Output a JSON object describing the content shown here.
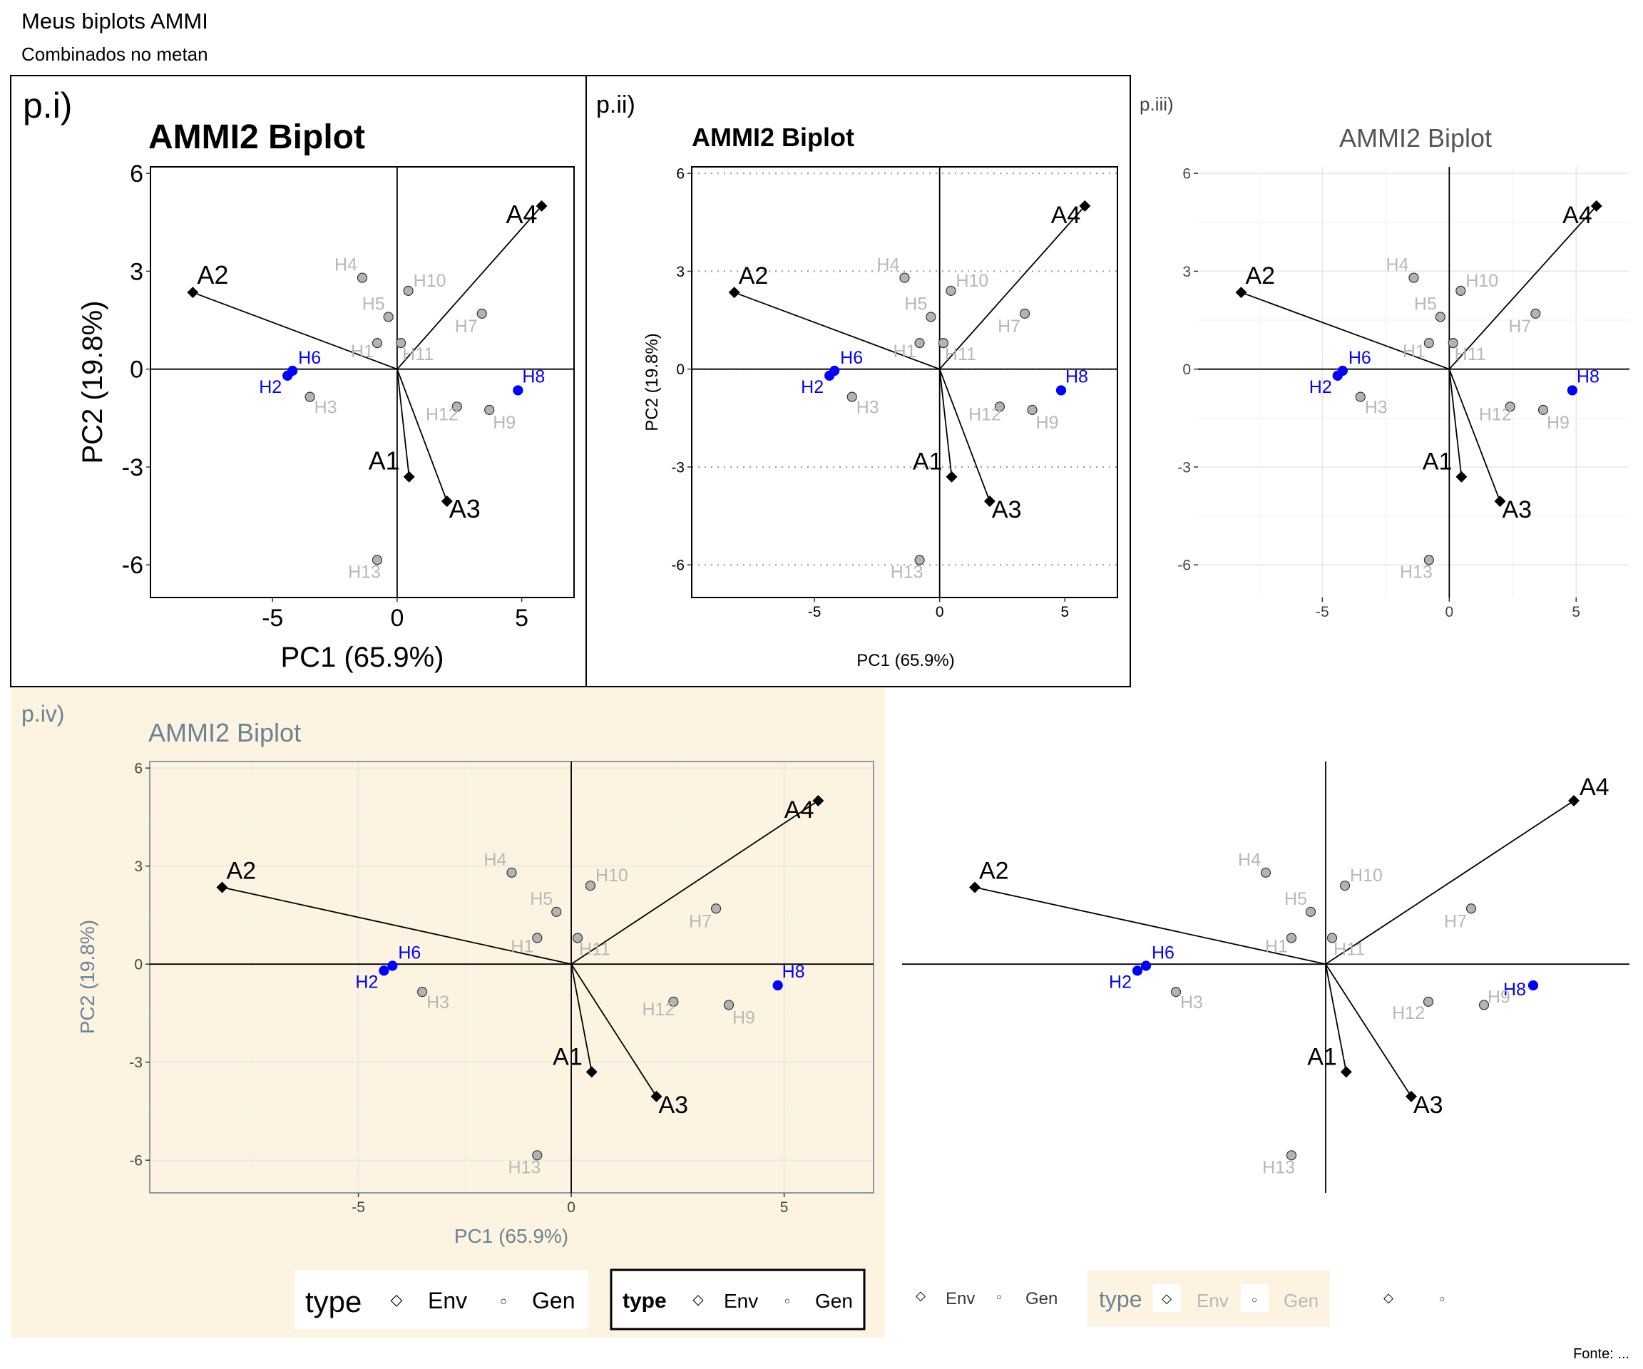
{
  "page": {
    "title": "Meus biplots AMMI",
    "subtitle": "Combinados no metan",
    "caption": "Fonte: ..."
  },
  "colors": {
    "env": "#000000",
    "gen_fill": "#b3b3b3",
    "gen_label": "#b8b8b8",
    "highlight": "#0000ff",
    "panel4_bg": "#fcf4e1",
    "panel4_text": "#6b8396",
    "grid_light": "#e6e6e6"
  },
  "chart_data": [
    {
      "id": "p.i)",
      "tag": "p.i)",
      "type": "scatter",
      "title": "AMMI2 Biplot",
      "xlabel": "PC1 (65.9%)",
      "ylabel": "PC2 (19.8%)",
      "xticks": [
        -5,
        0,
        5
      ],
      "yticks": [
        -6,
        -3,
        0,
        3,
        6
      ],
      "grid": "none",
      "legend": {
        "title": "type",
        "items": [
          "Env",
          "Gen"
        ]
      }
    },
    {
      "id": "p.ii)",
      "tag": "p.ii)",
      "type": "scatter",
      "title": "AMMI2 Biplot",
      "xlabel": "PC1 (65.9%)",
      "ylabel": "PC2 (19.8%)",
      "xticks": [
        -5,
        0,
        5
      ],
      "yticks": [
        -6,
        -3,
        0,
        3,
        6
      ],
      "grid": "dotted horizontal",
      "legend": {
        "title": "type",
        "items": [
          "Env",
          "Gen"
        ]
      }
    },
    {
      "id": "p.iii)",
      "tag": "p.iii)",
      "type": "scatter",
      "title": "AMMI2 Biplot",
      "xticks": [
        -5,
        0,
        5
      ],
      "yticks": [
        -6,
        -3,
        0,
        3,
        6
      ],
      "grid": "light",
      "legend": {
        "title": "",
        "items": [
          "Env",
          "Gen"
        ]
      }
    },
    {
      "id": "p.iv)",
      "tag": "p.iv)",
      "type": "scatter",
      "title": "AMMI2 Biplot",
      "xlabel": "PC1 (65.9%)",
      "ylabel": "PC2 (19.8%)",
      "xticks": [
        -5,
        0,
        5
      ],
      "yticks": [
        -6,
        -3,
        0,
        3,
        6
      ],
      "grid": "light",
      "legend": {
        "title": "type",
        "items": [
          "Env",
          "Gen"
        ]
      }
    },
    {
      "id": "p.v",
      "tag": "",
      "type": "scatter",
      "title": "",
      "grid": "none",
      "legend": {
        "title": "",
        "items": [
          "",
          ""
        ]
      }
    }
  ],
  "points": {
    "env": [
      {
        "label": "A1",
        "x": 0.48,
        "y": -3.3
      },
      {
        "label": "A2",
        "x": -8.2,
        "y": 2.35
      },
      {
        "label": "A3",
        "x": 2.0,
        "y": -4.05
      },
      {
        "label": "A4",
        "x": 5.8,
        "y": 5.0
      }
    ],
    "gen": [
      {
        "label": "H1",
        "x": -0.8,
        "y": 0.8
      },
      {
        "label": "H2",
        "x": -4.4,
        "y": -0.2
      },
      {
        "label": "H3",
        "x": -3.5,
        "y": -0.85
      },
      {
        "label": "H4",
        "x": -1.4,
        "y": 2.8
      },
      {
        "label": "H5",
        "x": -0.35,
        "y": 1.6
      },
      {
        "label": "H6",
        "x": -4.2,
        "y": -0.05
      },
      {
        "label": "H7",
        "x": 3.4,
        "y": 1.7
      },
      {
        "label": "H8",
        "x": 4.85,
        "y": -0.65
      },
      {
        "label": "H9",
        "x": 3.7,
        "y": -1.25
      },
      {
        "label": "H10",
        "x": 0.45,
        "y": 2.4
      },
      {
        "label": "H11",
        "x": 0.15,
        "y": 0.8
      },
      {
        "label": "H12",
        "x": 2.4,
        "y": -1.15
      },
      {
        "label": "H13",
        "x": -0.8,
        "y": -5.85
      }
    ],
    "highlight": [
      "H2",
      "H6",
      "H8"
    ]
  }
}
